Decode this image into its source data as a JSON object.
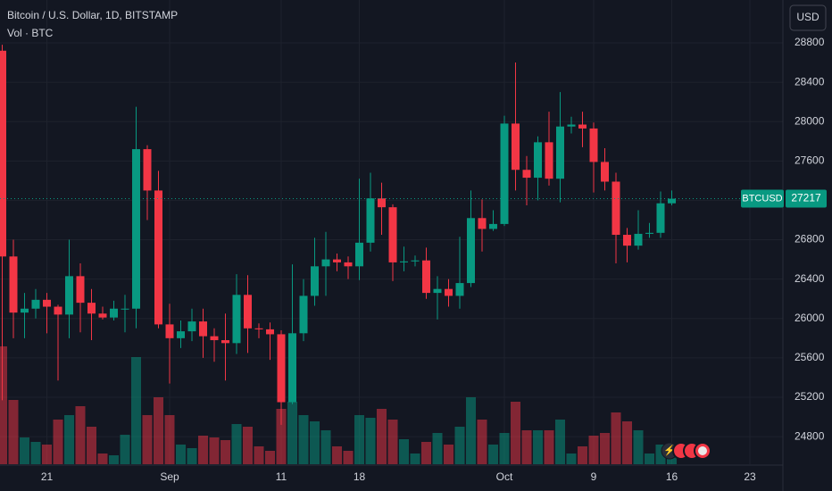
{
  "chart_data": {
    "type": "candlestick",
    "title": "Bitcoin / U.S. Dollar, 1D, BITSTAMP",
    "subtitle": "Vol · BTC",
    "currency": "USD",
    "symbol": "BTCUSD",
    "up_color": "#089981",
    "down_color": "#f23645",
    "x": [
      "08-17",
      "08-18",
      "08-19",
      "08-20",
      "08-21",
      "08-22",
      "08-23",
      "08-24",
      "08-25",
      "08-26",
      "08-27",
      "08-28",
      "08-29",
      "08-30",
      "08-31",
      "09-01",
      "09-02",
      "09-03",
      "09-04",
      "09-05",
      "09-06",
      "09-07",
      "09-08",
      "09-09",
      "09-10",
      "09-11",
      "09-12",
      "09-13",
      "09-14",
      "09-15",
      "09-16",
      "09-17",
      "09-18",
      "09-19",
      "09-20",
      "09-21",
      "09-22",
      "09-23",
      "09-24",
      "09-25",
      "09-26",
      "09-27",
      "09-28",
      "09-29",
      "09-30",
      "10-01",
      "10-02",
      "10-03",
      "10-04",
      "10-05",
      "10-06",
      "10-07",
      "10-08",
      "10-09",
      "10-10",
      "10-11",
      "10-12",
      "10-13",
      "10-14",
      "10-15",
      "10-16"
    ],
    "open": [
      28720,
      26630,
      26060,
      26100,
      26190,
      26120,
      26040,
      26430,
      26160,
      26050,
      26010,
      26100,
      26100,
      27720,
      27300,
      25940,
      25800,
      25870,
      25970,
      25820,
      25780,
      25750,
      26240,
      25900,
      25890,
      25840,
      25150,
      25850,
      26230,
      26530,
      26600,
      26570,
      26530,
      26770,
      27220,
      27130,
      26570,
      26580,
      26590,
      26260,
      26300,
      26230,
      26360,
      27020,
      26910,
      26960,
      27980,
      27510,
      27430,
      27790,
      27420,
      27950,
      27970,
      27930,
      27590,
      27390,
      26850,
      26740,
      26860,
      26870,
      27170
    ],
    "high": [
      28780,
      26800,
      26260,
      26300,
      26260,
      26140,
      26800,
      26560,
      26300,
      26120,
      26180,
      26240,
      28150,
      27760,
      27500,
      26150,
      25980,
      26100,
      26100,
      25900,
      26050,
      26450,
      26440,
      25950,
      25960,
      25880,
      26550,
      26400,
      26820,
      26880,
      26660,
      26630,
      27420,
      27480,
      27380,
      27160,
      26730,
      26640,
      26720,
      26430,
      26400,
      26830,
      27300,
      27210,
      27100,
      28060,
      28600,
      27650,
      27850,
      28100,
      28300,
      28050,
      28100,
      27990,
      27730,
      27480,
      26920,
      27100,
      26970,
      27290,
      27300
    ],
    "low": [
      25170,
      25800,
      25800,
      26000,
      25850,
      25370,
      25800,
      25860,
      25780,
      25990,
      25980,
      25860,
      25900,
      27000,
      25900,
      25340,
      25700,
      25770,
      25600,
      25560,
      25370,
      25640,
      25650,
      25800,
      25580,
      24920,
      25130,
      25770,
      26130,
      26230,
      26480,
      26400,
      26390,
      26680,
      26850,
      26380,
      26480,
      26530,
      26200,
      25990,
      26120,
      26100,
      26320,
      26680,
      26890,
      26940,
      27300,
      27150,
      27200,
      27350,
      27180,
      27880,
      27740,
      27280,
      27300,
      26560,
      26570,
      26700,
      26820,
      26820,
      27150
    ],
    "close": [
      26630,
      26060,
      26100,
      26190,
      26120,
      26040,
      26430,
      26160,
      26050,
      26010,
      26100,
      26100,
      27720,
      27300,
      25940,
      25800,
      25870,
      25970,
      25820,
      25780,
      25750,
      26240,
      25900,
      25890,
      25840,
      25150,
      25850,
      26230,
      26530,
      26600,
      26570,
      26530,
      26770,
      27220,
      27130,
      26570,
      26580,
      26590,
      26260,
      26300,
      26230,
      26360,
      27020,
      26910,
      26960,
      27980,
      27510,
      27430,
      27790,
      27420,
      27950,
      27970,
      27930,
      27590,
      27390,
      26850,
      26740,
      26860,
      26870,
      27170,
      27217
    ],
    "volume": [
      5280,
      2880,
      1200,
      1000,
      880,
      2000,
      2200,
      2600,
      1680,
      480,
      400,
      1320,
      4800,
      2200,
      3000,
      2200,
      880,
      720,
      1280,
      1200,
      1080,
      1800,
      1680,
      800,
      600,
      2480,
      2800,
      2200,
      1920,
      1520,
      800,
      600,
      2200,
      2080,
      2480,
      2000,
      1120,
      480,
      1000,
      1400,
      880,
      1680,
      3000,
      2000,
      880,
      1400,
      2800,
      1520,
      1520,
      1520,
      2000,
      480,
      800,
      1280,
      1400,
      2320,
      1920,
      1520,
      480,
      880,
      720
    ],
    "ylim": [
      24520,
      29235
    ],
    "yticks": [
      24800,
      25200,
      25600,
      26000,
      26400,
      26800,
      27200,
      27600,
      28000,
      28400,
      28800
    ],
    "xticks": [
      {
        "value": "08-21",
        "label": "21"
      },
      {
        "value": "09-01",
        "label": "Sep"
      },
      {
        "value": "09-11",
        "label": "11"
      },
      {
        "value": "09-18",
        "label": "18"
      },
      {
        "value": "10-01",
        "label": "Oct"
      },
      {
        "value": "10-09",
        "label": "9"
      },
      {
        "value": "10-16",
        "label": "16"
      },
      {
        "value": "10-23",
        "label": "23"
      }
    ],
    "grid": true
  }
}
